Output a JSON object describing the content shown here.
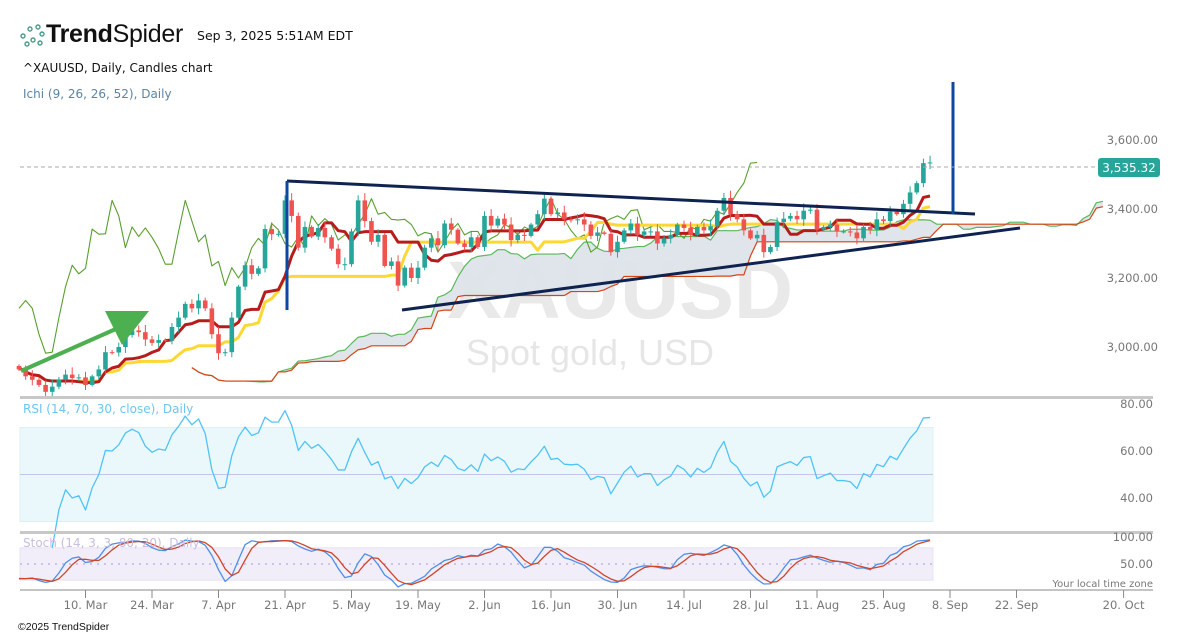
{
  "header": {
    "brand_bold": "Trend",
    "brand_light": "Spider",
    "timestamp": "Sep 3, 2025 5:51AM EDT",
    "symbol_line": "^XAUUSD, Daily, Candles chart",
    "indicator_line": "Ichi (9, 26, 26, 52), Daily",
    "logo_icon": "spider-dots-icon"
  },
  "footer": {
    "copyright": "©2025 TrendSpider",
    "timezone_note": "Your local time zone"
  },
  "watermark": {
    "symbol": "XAUUSD",
    "name": "Spot gold, USD"
  },
  "colors": {
    "up": "#26a69a",
    "down": "#ef5350",
    "tenkan": "#b71c1c",
    "kijun": "#fdd835",
    "span_a": "#5cb85c",
    "span_b": "#d84315",
    "cloud": "#dde4ea",
    "chikou": "#5a9e2f",
    "rsi": "#4fc3f7",
    "stoch_k": "#4e8fe8",
    "stoch_d": "#d0452a",
    "last_price": "#26a69a",
    "trendline": "#0f2350",
    "arrow": "#4caf50",
    "vline": "#0d47a1"
  },
  "chart_data": [
    {
      "type": "candlestick",
      "title": "^XAUUSD, Daily, Candles chart",
      "ylim": [
        2855,
        3775
      ],
      "yticks": [
        "3,600.00",
        "3,400.00",
        "3,200.00",
        "3,000.00"
      ],
      "ytick_values": [
        3600,
        3400,
        3200,
        3000
      ],
      "last_price": 3535.32,
      "last_price_label": "3,535.32",
      "xticks": [
        {
          "date": "2025-03-10",
          "label": "10. Mar"
        },
        {
          "date": "2025-03-24",
          "label": "24. Mar"
        },
        {
          "date": "2025-04-07",
          "label": "7. Apr"
        },
        {
          "date": "2025-04-21",
          "label": "21. Apr"
        },
        {
          "date": "2025-05-05",
          "label": "5. May"
        },
        {
          "date": "2025-05-19",
          "label": "19. May"
        },
        {
          "date": "2025-06-02",
          "label": "2. Jun"
        },
        {
          "date": "2025-06-16",
          "label": "16. Jun"
        },
        {
          "date": "2025-06-30",
          "label": "30. Jun"
        },
        {
          "date": "2025-07-14",
          "label": "14. Jul"
        },
        {
          "date": "2025-07-28",
          "label": "28. Jul"
        },
        {
          "date": "2025-08-11",
          "label": "11. Aug"
        },
        {
          "date": "2025-08-25",
          "label": "25. Aug"
        },
        {
          "date": "2025-09-08",
          "label": "8. Sep"
        },
        {
          "date": "2025-09-22",
          "label": "22. Sep"
        },
        {
          "date": "2025-10-20",
          "label": "20. Oct"
        }
      ],
      "weekly_closes": [
        {
          "week_of": "2025-02-24",
          "closes": [
            2935,
            2915,
            2905,
            2890,
            2870
          ]
        },
        {
          "week_of": "2025-03-03",
          "closes": [
            2885,
            2905,
            2920,
            2910,
            2912
          ]
        },
        {
          "week_of": "2025-03-10",
          "closes": [
            2890,
            2915,
            2935,
            2985,
            2984
          ]
        },
        {
          "week_of": "2025-03-17",
          "closes": [
            3000,
            3035,
            3048,
            3043,
            3022
          ]
        },
        {
          "week_of": "2025-03-24",
          "closes": [
            3012,
            3020,
            3018,
            3058,
            3085
          ]
        },
        {
          "week_of": "2025-03-31",
          "closes": [
            3125,
            3112,
            3135,
            3112,
            3037
          ]
        },
        {
          "week_of": "2025-04-07",
          "closes": [
            2982,
            2985,
            3085,
            3175,
            3237
          ]
        },
        {
          "week_of": "2025-04-14",
          "closes": [
            3212,
            3228,
            3342,
            3327,
            3328
          ]
        },
        {
          "week_of": "2025-04-21",
          "closes": [
            3425,
            3380,
            3288,
            3348,
            3320
          ]
        },
        {
          "week_of": "2025-04-28",
          "closes": [
            3345,
            3318,
            3285,
            3240,
            3240
          ]
        },
        {
          "week_of": "2025-05-05",
          "closes": [
            3335,
            3425,
            3365,
            3305,
            3325
          ]
        },
        {
          "week_of": "2025-05-12",
          "closes": [
            3235,
            3248,
            3178,
            3230,
            3200
          ]
        },
        {
          "week_of": "2025-05-19",
          "closes": [
            3230,
            3288,
            3315,
            3295,
            3358
          ]
        },
        {
          "week_of": "2025-05-26",
          "closes": [
            3340,
            3300,
            3290,
            3318,
            3290
          ]
        },
        {
          "week_of": "2025-06-02",
          "closes": [
            3380,
            3352,
            3372,
            3355,
            3310
          ]
        },
        {
          "week_of": "2025-06-09",
          "closes": [
            3325,
            3322,
            3355,
            3385,
            3430
          ]
        },
        {
          "week_of": "2025-06-16",
          "closes": [
            3385,
            3390,
            3370,
            3368,
            3370
          ]
        },
        {
          "week_of": "2025-06-23",
          "closes": [
            3355,
            3322,
            3332,
            3328,
            3275
          ]
        },
        {
          "week_of": "2025-06-30",
          "closes": [
            3305,
            3338,
            3358,
            3325,
            3335
          ]
        },
        {
          "week_of": "2025-07-07",
          "closes": [
            3335,
            3300,
            3315,
            3325,
            3355
          ]
        },
        {
          "week_of": "2025-07-14",
          "closes": [
            3345,
            3325,
            3348,
            3338,
            3350
          ]
        },
        {
          "week_of": "2025-07-21",
          "closes": [
            3395,
            3432,
            3385,
            3370,
            3338
          ]
        },
        {
          "week_of": "2025-07-28",
          "closes": [
            3315,
            3325,
            3275,
            3290,
            3362
          ]
        },
        {
          "week_of": "2025-08-04",
          "closes": [
            3372,
            3380,
            3370,
            3395,
            3398
          ]
        },
        {
          "week_of": "2025-08-11",
          "closes": [
            3340,
            3348,
            3355,
            3335,
            3335
          ]
        },
        {
          "week_of": "2025-08-18",
          "closes": [
            3332,
            3315,
            3348,
            3340,
            3370
          ]
        },
        {
          "week_of": "2025-08-25",
          "closes": [
            3365,
            3392,
            3385,
            3415,
            3448
          ]
        },
        {
          "week_of": "2025-09-01",
          "closes": [
            3475,
            3533,
            3535
          ]
        }
      ],
      "indicator": {
        "name": "Ichimoku",
        "params": [
          9,
          26,
          26,
          52
        ]
      }
    },
    {
      "type": "line",
      "title": "RSI (14, 70, 30, close), Daily",
      "ylim": [
        25,
        82
      ],
      "yticks": [
        "80.00",
        "60.00",
        "40.00"
      ],
      "ytick_values": [
        80,
        60,
        40
      ],
      "overbought": 70,
      "oversold": 30,
      "midline": 50
    },
    {
      "type": "line",
      "title": "Stoch (14, 3, 3, 80, 20), Daily",
      "ylim": [
        -10,
        105
      ],
      "yticks": [
        "100.00",
        "50.00"
      ],
      "ytick_values": [
        100,
        50
      ],
      "upper": 80,
      "lower": 20,
      "midline": 50
    }
  ]
}
